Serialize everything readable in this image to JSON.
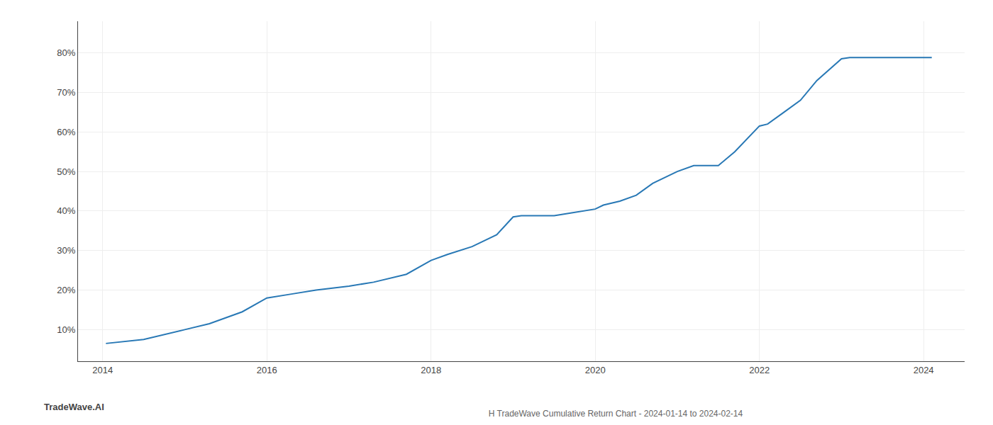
{
  "chart_data": {
    "type": "line",
    "title": "H TradeWave Cumulative Return Chart - 2024-01-14 to 2024-02-14",
    "annotations": [
      "TradeWave.AI"
    ],
    "x": [
      2014.04,
      2014.5,
      2015.0,
      2015.3,
      2015.7,
      2016.0,
      2016.3,
      2016.6,
      2017.0,
      2017.3,
      2017.7,
      2018.0,
      2018.2,
      2018.5,
      2018.8,
      2019.0,
      2019.1,
      2019.3,
      2019.5,
      2019.7,
      2020.0,
      2020.1,
      2020.3,
      2020.5,
      2020.7,
      2021.0,
      2021.2,
      2021.5,
      2021.7,
      2022.0,
      2022.1,
      2022.3,
      2022.5,
      2022.7,
      2023.0,
      2023.1,
      2023.3,
      2023.5,
      2023.7,
      2024.0,
      2024.1
    ],
    "values": [
      6.5,
      7.5,
      10.0,
      11.5,
      14.5,
      18.0,
      19.0,
      20.0,
      21.0,
      22.0,
      24.0,
      27.5,
      29.0,
      31.0,
      34.0,
      38.5,
      38.8,
      38.8,
      38.8,
      39.5,
      40.5,
      41.5,
      42.5,
      44.0,
      47.0,
      50.0,
      51.5,
      51.5,
      55.0,
      61.5,
      62.0,
      65.0,
      68.0,
      73.0,
      78.5,
      78.8,
      78.8,
      78.8,
      78.8,
      78.8,
      78.8
    ],
    "color": "#2878b5",
    "xlim": [
      2013.7,
      2024.5
    ],
    "ylim": [
      2,
      88
    ],
    "xticks": [
      2014,
      2016,
      2018,
      2020,
      2022,
      2024
    ],
    "yticks": [
      {
        "value": 10,
        "label": "10%"
      },
      {
        "value": 20,
        "label": "20%"
      },
      {
        "value": 30,
        "label": "30%"
      },
      {
        "value": 40,
        "label": "40%"
      },
      {
        "value": 50,
        "label": "50%"
      },
      {
        "value": 60,
        "label": "60%"
      },
      {
        "value": 70,
        "label": "70%"
      },
      {
        "value": 80,
        "label": "80%"
      }
    ],
    "grid": true
  }
}
